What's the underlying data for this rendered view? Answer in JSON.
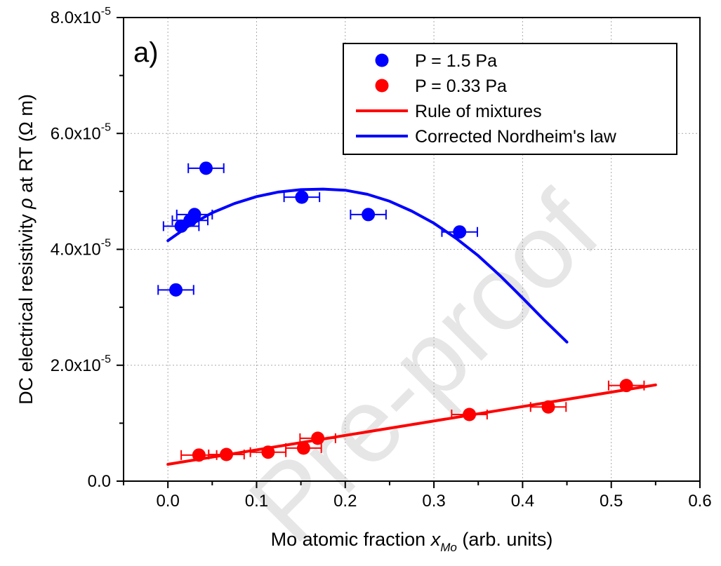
{
  "chart_data": {
    "type": "scatter",
    "panel_label": "a)",
    "xlabel": "Mo atomic fraction",
    "xlabel_symbol": "x",
    "xlabel_subscript": "Mo",
    "xlabel_suffix": "(arb. units)",
    "ylabel": "DC electrical resistivity",
    "ylabel_symbol": "ρ",
    "ylabel_suffix": "at RT (Ω m)",
    "xlim": [
      -0.05,
      0.6
    ],
    "ylim": [
      0,
      8e-05
    ],
    "x_ticks": [
      {
        "value": 0.0,
        "label": "0.0"
      },
      {
        "value": 0.1,
        "label": "0.1"
      },
      {
        "value": 0.2,
        "label": "0.2"
      },
      {
        "value": 0.3,
        "label": "0.3"
      },
      {
        "value": 0.4,
        "label": "0.4"
      },
      {
        "value": 0.5,
        "label": "0.5"
      },
      {
        "value": 0.6,
        "label": "0.6"
      }
    ],
    "y_ticks": [
      {
        "value": 0,
        "label": "0.0",
        "exp": ""
      },
      {
        "value": 2e-05,
        "label": "2.0x10",
        "exp": "-5"
      },
      {
        "value": 4e-05,
        "label": "4.0x10",
        "exp": "-5"
      },
      {
        "value": 6e-05,
        "label": "6.0x10",
        "exp": "-5"
      },
      {
        "value": 8e-05,
        "label": "8.0x10",
        "exp": "-5"
      }
    ],
    "grid": true,
    "legend_position": "top-right",
    "series": [
      {
        "name": "P =   1.5 Pa",
        "kind": "scatter",
        "color": "#0000ff",
        "points": [
          {
            "x": 0.009,
            "y": 3.3e-05,
            "xerr": 0.02
          },
          {
            "x": 0.015,
            "y": 4.4e-05,
            "xerr": 0.02
          },
          {
            "x": 0.025,
            "y": 4.5e-05,
            "xerr": 0.02
          },
          {
            "x": 0.03,
            "y": 4.6e-05,
            "xerr": 0.02
          },
          {
            "x": 0.043,
            "y": 5.4e-05,
            "xerr": 0.02
          },
          {
            "x": 0.151,
            "y": 4.9e-05,
            "xerr": 0.02
          },
          {
            "x": 0.226,
            "y": 4.6e-05,
            "xerr": 0.02
          },
          {
            "x": 0.329,
            "y": 4.3e-05,
            "xerr": 0.02
          }
        ]
      },
      {
        "name": "P = 0.33 Pa",
        "kind": "scatter",
        "color": "#ff0000",
        "points": [
          {
            "x": 0.035,
            "y": 4.5e-06,
            "xerr": 0.02
          },
          {
            "x": 0.066,
            "y": 4.6e-06,
            "xerr": 0.02
          },
          {
            "x": 0.113,
            "y": 5e-06,
            "xerr": 0.02
          },
          {
            "x": 0.153,
            "y": 5.7e-06,
            "xerr": 0.02
          },
          {
            "x": 0.169,
            "y": 7.4e-06,
            "xerr": 0.02
          },
          {
            "x": 0.34,
            "y": 1.15e-05,
            "xerr": 0.02
          },
          {
            "x": 0.429,
            "y": 1.28e-05,
            "xerr": 0.02
          },
          {
            "x": 0.517,
            "y": 1.65e-05,
            "xerr": 0.02
          }
        ]
      },
      {
        "name": "Rule of mixtures",
        "kind": "line",
        "color": "#ff0000",
        "x": [
          0.0,
          0.55
        ],
        "y": [
          2.9e-06,
          1.66e-05
        ]
      },
      {
        "name": "Corrected Nordheim's law",
        "kind": "line",
        "color": "#0000ff",
        "x": [
          0.0,
          0.025,
          0.05,
          0.075,
          0.1,
          0.125,
          0.15,
          0.175,
          0.2,
          0.225,
          0.25,
          0.275,
          0.3,
          0.325,
          0.35,
          0.375,
          0.4,
          0.425,
          0.45
        ],
        "y": [
          4.15e-05,
          4.42e-05,
          4.63e-05,
          4.79e-05,
          4.91e-05,
          4.99e-05,
          5.03e-05,
          5.04e-05,
          5.02e-05,
          4.95e-05,
          4.83e-05,
          4.66e-05,
          4.45e-05,
          4.19e-05,
          3.89e-05,
          3.54e-05,
          3.16e-05,
          2.77e-05,
          2.4e-05
        ]
      }
    ],
    "watermark": "Pre-proof"
  }
}
